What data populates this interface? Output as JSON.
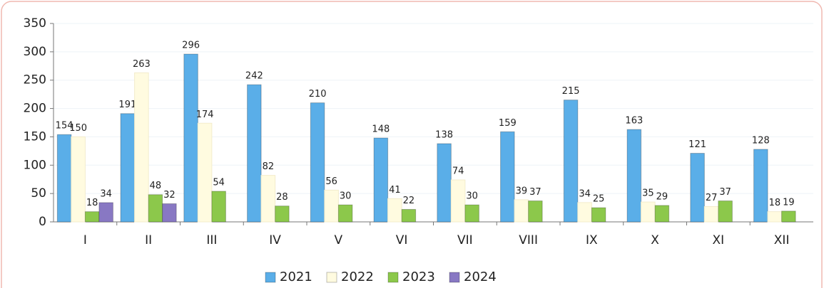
{
  "chart_data": {
    "type": "bar",
    "categories": [
      "I",
      "II",
      "III",
      "IV",
      "V",
      "VI",
      "VII",
      "VIII",
      "IX",
      "X",
      "XI",
      "XII"
    ],
    "series": [
      {
        "name": "2021",
        "color": "#5aaee8",
        "values": [
          154,
          191,
          296,
          242,
          210,
          148,
          138,
          159,
          215,
          163,
          121,
          128
        ]
      },
      {
        "name": "2022",
        "color": "#fffbe0",
        "values": [
          150,
          263,
          174,
          82,
          56,
          41,
          74,
          39,
          34,
          35,
          27,
          18
        ]
      },
      {
        "name": "2023",
        "color": "#8cc84b",
        "values": [
          18,
          48,
          54,
          28,
          30,
          22,
          30,
          37,
          25,
          29,
          37,
          19
        ]
      },
      {
        "name": "2024",
        "color": "#8878c3",
        "values": [
          34,
          32,
          null,
          null,
          null,
          null,
          null,
          null,
          null,
          null,
          null,
          null
        ]
      }
    ],
    "ylim": [
      0,
      350
    ],
    "yticks": [
      0,
      50,
      100,
      150,
      200,
      250,
      300,
      350
    ],
    "grid": true,
    "legend": "bottom"
  }
}
